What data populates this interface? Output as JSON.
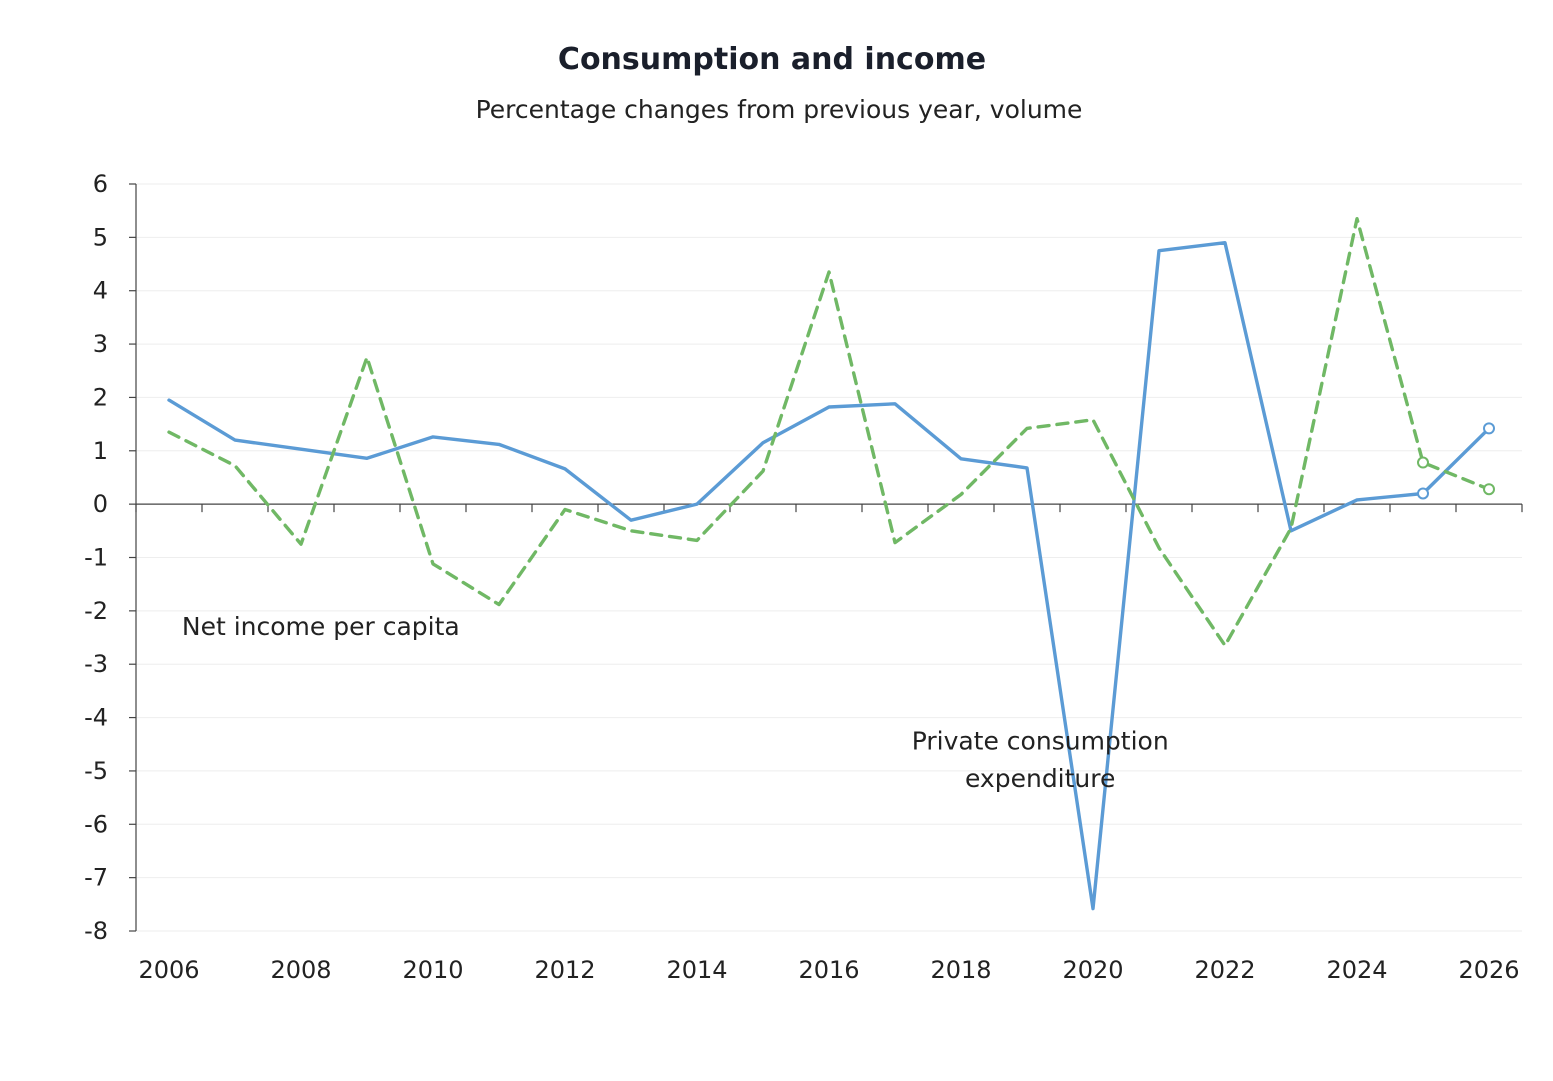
{
  "chart_data": {
    "type": "line",
    "title": "Consumption and income",
    "subtitle": "Percentage changes from previous year, volume",
    "xlabel": "",
    "ylabel": "",
    "x": [
      2006,
      2007,
      2008,
      2009,
      2010,
      2011,
      2012,
      2013,
      2014,
      2015,
      2016,
      2017,
      2018,
      2019,
      2020,
      2021,
      2022,
      2023,
      2024,
      2025,
      2026
    ],
    "x_ticks": [
      "2006",
      "2008",
      "2010",
      "2012",
      "2014",
      "2016",
      "2018",
      "2020",
      "2022",
      "2024",
      "2026"
    ],
    "x_tick_values": [
      2006,
      2008,
      2010,
      2012,
      2014,
      2016,
      2018,
      2020,
      2022,
      2024,
      2026
    ],
    "y_ticks": [
      "6",
      "5",
      "4",
      "3",
      "2",
      "1",
      "0",
      "-1",
      "-2",
      "-3",
      "-4",
      "-5",
      "-6",
      "-7",
      "-8"
    ],
    "y_tick_values": [
      6,
      5,
      4,
      3,
      2,
      1,
      0,
      -1,
      -2,
      -3,
      -4,
      -5,
      -6,
      -7,
      -8
    ],
    "xlim": [
      2006,
      2027
    ],
    "ylim": [
      -8,
      6
    ],
    "grid": true,
    "legend": "none",
    "annotations": [
      {
        "text": "Net income per capita",
        "series": "Net income per capita",
        "x": 2008.3,
        "y": -2.45
      },
      {
        "text": "Private consumption",
        "series": "Private consumption expenditure",
        "x": 2019.2,
        "y": -4.6
      },
      {
        "text": "expenditure",
        "series": "Private consumption expenditure",
        "x": 2019.2,
        "y": -5.3
      }
    ],
    "series": [
      {
        "name": "",
        "label": "Private consumption expenditure",
        "color": "#5b9bd5",
        "dash": "solid",
        "values": [
          1.95,
          1.2,
          1.03,
          0.86,
          1.26,
          1.12,
          0.66,
          -0.3,
          0.0,
          1.15,
          1.82,
          1.88,
          0.85,
          0.68,
          -7.58,
          4.75,
          4.9,
          -0.5,
          0.08,
          0.2,
          1.42
        ],
        "forecast_from": 2025
      },
      {
        "name": "",
        "label": "Net income per capita",
        "color": "#70b865",
        "dash": "dashed",
        "values": [
          1.35,
          0.72,
          -0.75,
          2.75,
          -1.12,
          -1.88,
          -0.1,
          -0.5,
          -0.68,
          0.62,
          4.35,
          -0.72,
          0.18,
          1.42,
          1.58,
          -0.82,
          -2.65,
          -0.45,
          5.35,
          0.78,
          0.28
        ],
        "forecast_from": 2025
      }
    ]
  }
}
